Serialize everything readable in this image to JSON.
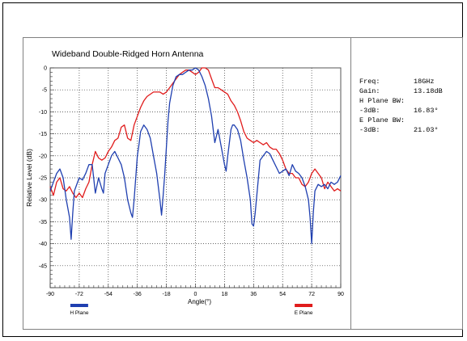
{
  "chart_data": {
    "type": "line",
    "title": "Wideband Double-Ridged Horn Antenna",
    "xlabel": "Angle(°)",
    "ylabel": "Relative Level (dB)",
    "xlim": [
      -90,
      90
    ],
    "ylim": [
      -50,
      0
    ],
    "xticks": [
      "-90",
      "-72",
      "-54",
      "-36",
      "-18",
      "0",
      "18",
      "36",
      "54",
      "72",
      "90"
    ],
    "yticks": [
      "0",
      "-5",
      "-10",
      "-15",
      "-20",
      "-25",
      "-30",
      "-35",
      "-40",
      "-45"
    ],
    "grid": true,
    "series": [
      {
        "name": "H Plane",
        "color": "#1f3fb0",
        "x": [
          -90,
          -88,
          -86,
          -84,
          -82,
          -80,
          -78,
          -77,
          -76,
          -75,
          -74,
          -72,
          -70,
          -68,
          -66,
          -64,
          -62,
          -60,
          -58,
          -57,
          -56,
          -54,
          -52,
          -50,
          -48,
          -46,
          -44,
          -42,
          -40,
          -39,
          -38,
          -37,
          -36,
          -35,
          -34,
          -32,
          -30,
          -28,
          -26,
          -24,
          -23,
          -22,
          -21,
          -20,
          -19,
          -18,
          -17,
          -16,
          -14,
          -12,
          -10,
          -8,
          -6,
          -4,
          -2,
          0,
          2,
          4,
          6,
          8,
          10,
          12,
          14,
          16,
          18,
          19,
          20,
          21,
          22,
          23,
          24,
          26,
          28,
          30,
          32,
          34,
          35,
          36,
          37,
          38,
          40,
          42,
          44,
          46,
          48,
          50,
          52,
          54,
          56,
          58,
          60,
          62,
          64,
          66,
          68,
          70,
          71,
          72,
          73,
          74,
          76,
          78,
          80,
          82,
          84,
          86,
          88,
          90
        ],
        "values": [
          -28,
          -26,
          -24,
          -23,
          -25,
          -30,
          -34,
          -39,
          -33,
          -28,
          -27,
          -25,
          -25.5,
          -24,
          -22,
          -22,
          -28.5,
          -25,
          -27.5,
          -28.5,
          -24,
          -22,
          -20,
          -19,
          -20.5,
          -22,
          -25,
          -30,
          -33,
          -34,
          -30,
          -25,
          -20,
          -17.5,
          -14.5,
          -13,
          -14,
          -16,
          -20,
          -24,
          -27,
          -30,
          -33.5,
          -29,
          -24,
          -18,
          -12,
          -8,
          -4,
          -2,
          -1.5,
          -1.5,
          -1,
          -0.5,
          -0.5,
          0,
          -0.5,
          -2,
          -4,
          -7,
          -11,
          -17,
          -14,
          -18,
          -22,
          -23.5,
          -20,
          -17,
          -14,
          -13,
          -13,
          -14,
          -16.5,
          -21,
          -25,
          -30,
          -35.5,
          -36,
          -33,
          -29,
          -21,
          -20,
          -19,
          -19.5,
          -21,
          -22.5,
          -24,
          -23.5,
          -23,
          -24.5,
          -22,
          -23.5,
          -24,
          -25,
          -27,
          -30,
          -34,
          -40,
          -33,
          -28,
          -26.5,
          -27,
          -26.5,
          -27.5,
          -26,
          -26.5,
          -26,
          -24.5
        ]
      },
      {
        "name": "E Plane",
        "color": "#e01c1c",
        "x": [
          -90,
          -88,
          -86,
          -84,
          -82,
          -80,
          -78,
          -76,
          -74,
          -72,
          -70,
          -68,
          -66,
          -64,
          -62,
          -60,
          -58,
          -56,
          -54,
          -52,
          -50,
          -48,
          -46,
          -44,
          -42,
          -40,
          -38,
          -36,
          -34,
          -32,
          -30,
          -28,
          -26,
          -24,
          -22,
          -20,
          -18,
          -16,
          -14,
          -12,
          -10,
          -8,
          -6,
          -4,
          -2,
          0,
          2,
          4,
          6,
          8,
          10,
          12,
          14,
          16,
          18,
          20,
          22,
          24,
          26,
          28,
          30,
          32,
          34,
          36,
          38,
          40,
          42,
          44,
          46,
          48,
          50,
          52,
          54,
          56,
          58,
          60,
          62,
          64,
          66,
          68,
          70,
          72,
          74,
          76,
          78,
          80,
          82,
          84,
          86,
          88,
          90
        ],
        "values": [
          -27,
          -29,
          -26,
          -25,
          -27.5,
          -28,
          -27,
          -28.5,
          -29.5,
          -28.5,
          -29.5,
          -27.5,
          -26,
          -22,
          -19,
          -20.5,
          -21,
          -20.5,
          -19,
          -18,
          -16.5,
          -16,
          -13.5,
          -13,
          -16,
          -16.5,
          -13,
          -11,
          -9,
          -7.5,
          -6.5,
          -6,
          -5.5,
          -5.5,
          -5.5,
          -6,
          -5.5,
          -4.5,
          -3.5,
          -2.5,
          -1.5,
          -1,
          -0.5,
          -0.5,
          -1,
          -1.5,
          -1,
          0,
          0,
          -0.5,
          -2.5,
          -4.5,
          -4.5,
          -5,
          -5.5,
          -6,
          -7.5,
          -8.5,
          -10,
          -12,
          -14.5,
          -16,
          -16.5,
          -17,
          -16.5,
          -17,
          -17.5,
          -17,
          -18,
          -18.5,
          -18.5,
          -19.5,
          -21,
          -23,
          -24,
          -24,
          -25,
          -25,
          -26.5,
          -27,
          -26,
          -24,
          -23,
          -24,
          -25,
          -27.5,
          -26,
          -27,
          -28,
          -27.5,
          -28
        ]
      }
    ]
  },
  "info": {
    "rows": [
      {
        "label": "Freq:",
        "value": "18GHz"
      },
      {
        "label": "Gain:",
        "value": "13.18dB"
      },
      {
        "label": "H Plane BW:",
        "value": ""
      },
      {
        "label": "-3dB:",
        "value": "16.83°"
      },
      {
        "label": "E Plane BW:",
        "value": ""
      },
      {
        "label": "-3dB:",
        "value": "21.03°"
      }
    ]
  }
}
